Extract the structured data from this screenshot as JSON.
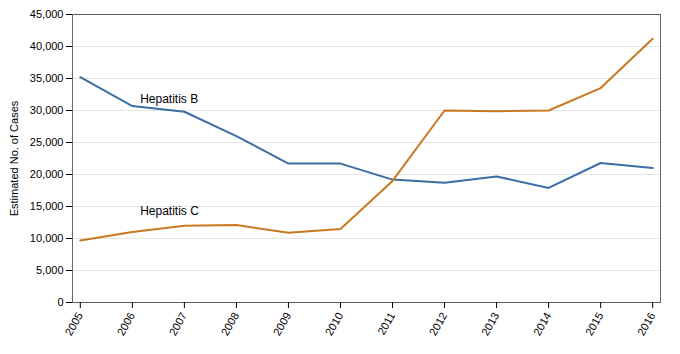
{
  "chart_data": {
    "type": "line",
    "ylabel": "Estimated No. of Cases",
    "x": [
      2005,
      2006,
      2007,
      2008,
      2009,
      2010,
      2011,
      2012,
      2013,
      2014,
      2015,
      2016
    ],
    "series": [
      {
        "name": "Hepatitis B",
        "color": "#3A6EA5",
        "values": [
          35200,
          30700,
          29800,
          26000,
          21700,
          21700,
          19200,
          18700,
          19700,
          17900,
          21800,
          21000
        ]
      },
      {
        "name": "Hepatitis C",
        "color": "#C87820",
        "values": [
          9700,
          11000,
          12000,
          12100,
          10900,
          11500,
          19000,
          30000,
          29900,
          30000,
          33500,
          41200
        ]
      }
    ],
    "annotations": [
      {
        "text": "Hepatitis B",
        "x": 2006.15,
        "y": 31800
      },
      {
        "text": "Hepatitis C",
        "x": 2006.15,
        "y": 14200
      }
    ],
    "xlim": [
      2004.85,
      2016.15
    ],
    "xticks": [
      2005,
      2006,
      2007,
      2008,
      2009,
      2010,
      2011,
      2012,
      2013,
      2014,
      2015,
      2016
    ],
    "ylim": [
      0,
      45000
    ],
    "yticks": [
      0,
      {
        "value": 5000,
        "label": "5,000"
      },
      {
        "value": 10000,
        "label": "10,000"
      },
      {
        "value": 15000,
        "label": "15,000"
      },
      {
        "value": 20000,
        "label": "20,000"
      },
      {
        "value": 25000,
        "label": "25,000"
      },
      {
        "value": 30000,
        "label": "30,000"
      },
      {
        "value": 35000,
        "label": "35,000"
      },
      {
        "value": 40000,
        "label": "40,000"
      },
      {
        "value": 45000,
        "label": "45,000"
      }
    ],
    "grid": true
  }
}
